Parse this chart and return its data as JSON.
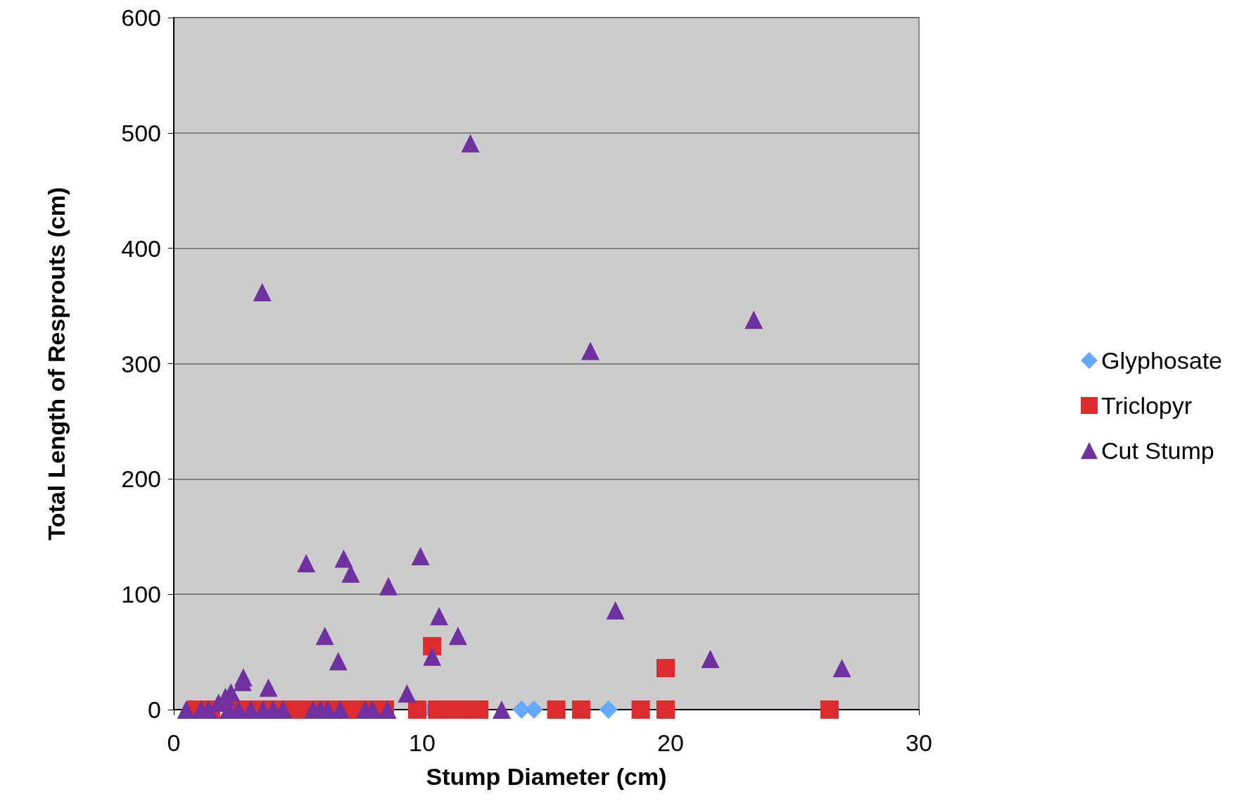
{
  "chart_data": {
    "type": "scatter",
    "xlabel": "Stump Diameter (cm)",
    "ylabel": "Total Length of Resprouts (cm)",
    "xlim": [
      0,
      30
    ],
    "xticks": [
      0,
      10,
      20,
      30
    ],
    "ylim": [
      0,
      600
    ],
    "yticks": [
      0,
      100,
      200,
      300,
      400,
      500,
      600
    ],
    "grid": "y",
    "legend": "right",
    "series": [
      {
        "name": "Glyphosate",
        "color": "#66aaff",
        "marker": "diamond",
        "x": [
          10.1,
          14.0,
          14.5,
          17.5
        ],
        "values": [
          0,
          0,
          0,
          0
        ]
      },
      {
        "name": "Triclopyr",
        "color": "#dd2b30",
        "marker": "square",
        "x": [
          0.9,
          1.5,
          2.5,
          3.0,
          3.5,
          4.0,
          4.5,
          5.0,
          5.5,
          6.0,
          6.5,
          7.0,
          7.5,
          8.0,
          8.5,
          9.8,
          10.6,
          11.2,
          11.7,
          12.3,
          15.4,
          16.4,
          18.8,
          19.8,
          26.4,
          10.4,
          19.8
        ],
        "values": [
          0,
          0,
          0,
          0,
          0,
          0,
          0,
          0,
          0,
          0,
          0,
          0,
          0,
          0,
          0,
          0,
          0,
          0,
          0,
          0,
          0,
          0,
          0,
          0,
          0,
          55,
          36
        ]
      },
      {
        "name": "Cut Stump",
        "color": "#7030a0",
        "marker": "triangle",
        "x": [
          3.56,
          5.33,
          6.84,
          7.12,
          8.64,
          9.93,
          11.94,
          16.77,
          17.78,
          23.35,
          26.9,
          21.6,
          10.68,
          11.44,
          10.4,
          6.08,
          6.62,
          9.39,
          3.81,
          2.8,
          2.77,
          2.3,
          2.08,
          1.8,
          13.2,
          0.5,
          1.1,
          1.4,
          2.2,
          2.6,
          3.1,
          3.6,
          4.0,
          4.4,
          5.6,
          5.9,
          6.2,
          6.7,
          7.7,
          8.0,
          8.6
        ],
        "values": [
          362,
          127,
          131,
          118,
          107,
          133,
          491,
          311,
          86,
          338,
          36,
          44,
          81,
          64,
          46,
          64,
          42,
          14,
          19,
          28,
          24,
          15,
          11,
          6,
          0,
          0,
          0,
          0,
          0,
          0,
          0,
          0,
          0,
          0,
          0,
          0,
          0,
          0,
          0,
          0,
          0
        ]
      }
    ]
  }
}
